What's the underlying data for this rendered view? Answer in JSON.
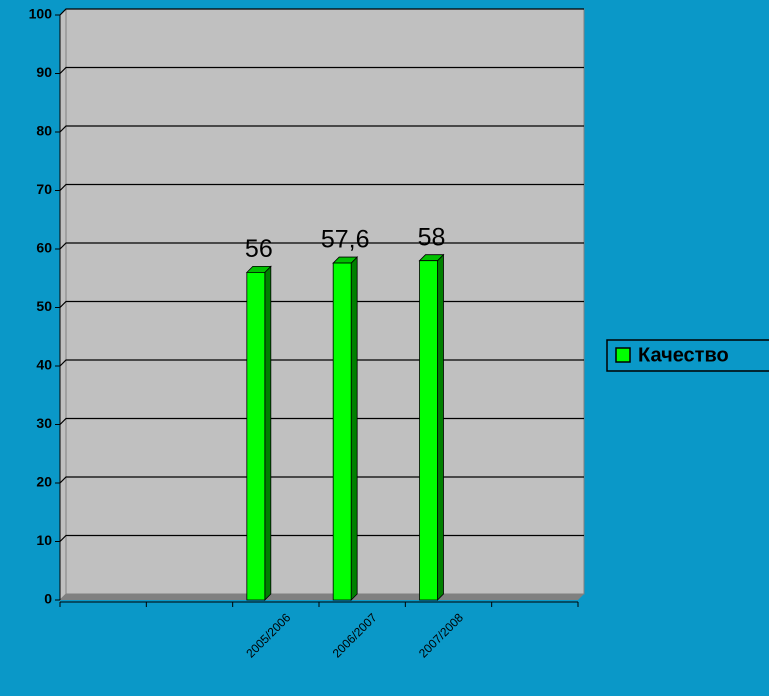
{
  "chart_data": {
    "type": "bar",
    "categories": [
      null,
      null,
      "2005/2006",
      "2006/2007",
      "2007/2008",
      null
    ],
    "series": [
      {
        "name": "Качество",
        "color": "#00ff00",
        "values": [
          null,
          null,
          56,
          57.6,
          58,
          null
        ],
        "value_labels": [
          null,
          null,
          "56",
          "57,6",
          "58",
          null
        ]
      }
    ],
    "ylim": [
      0,
      100
    ],
    "yticks": [
      0,
      10,
      20,
      30,
      40,
      50,
      60,
      70,
      80,
      90,
      100
    ],
    "grid": true,
    "legend": "right"
  }
}
